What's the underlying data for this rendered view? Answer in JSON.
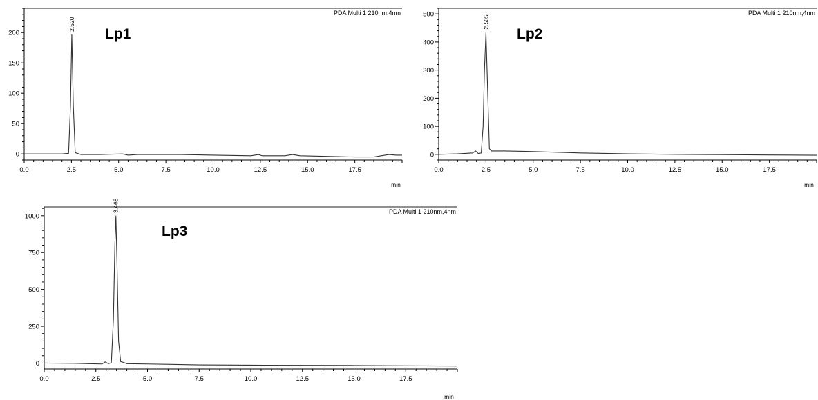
{
  "chart_data": [
    {
      "type": "line",
      "sample_label": "Lp1",
      "detector_label": "PDA Multi 1 210nm,4nm",
      "xlabel": "min",
      "ylabel": "",
      "xlim": [
        0,
        20
      ],
      "ylim": [
        -10,
        240
      ],
      "x_ticks": [
        "0.0",
        "2.5",
        "5.0",
        "7.5",
        "10.0",
        "12.5",
        "15.0",
        "17.5"
      ],
      "y_ticks": [
        "0",
        "50",
        "100",
        "150",
        "200"
      ],
      "peak_label": "2.520",
      "peak_rt": 2.52,
      "series": [
        {
          "x": [
            0,
            1.0,
            2.0,
            2.35,
            2.45,
            2.52,
            2.6,
            2.7,
            3.0,
            4.0,
            5.2,
            5.5,
            6.0,
            8.3,
            10.0,
            12.0,
            12.4,
            12.6,
            13.0,
            13.8,
            14.2,
            14.6,
            16.0,
            17.5,
            18.5,
            19.3,
            19.7,
            20.0
          ],
          "y": [
            0,
            0,
            0,
            1,
            80,
            197,
            80,
            2,
            -1,
            -1,
            0,
            -2,
            -1,
            -1,
            -2,
            -3,
            -1,
            -3,
            -3,
            -3,
            -1,
            -3,
            -4,
            -5,
            -5,
            -1,
            -2,
            -2
          ]
        }
      ]
    },
    {
      "type": "line",
      "sample_label": "Lp2",
      "detector_label": "PDA Multi 1 210nm,4nm",
      "xlabel": "min",
      "ylabel": "",
      "xlim": [
        0,
        20
      ],
      "ylim": [
        -20,
        520
      ],
      "x_ticks": [
        "0.0",
        "2.5",
        "5.0",
        "7.5",
        "10.0",
        "12.5",
        "15.0",
        "17.5"
      ],
      "y_ticks": [
        "0",
        "100",
        "200",
        "300",
        "400",
        "500"
      ],
      "peak_label": "2.505",
      "peak_rt": 2.505,
      "series": [
        {
          "x": [
            0,
            1.0,
            1.8,
            1.95,
            2.1,
            2.25,
            2.35,
            2.42,
            2.5,
            2.58,
            2.68,
            2.8,
            3.5,
            5.0,
            7.5,
            10.0,
            12.5,
            15.0,
            17.5,
            20.0
          ],
          "y": [
            0,
            2,
            5,
            12,
            3,
            5,
            100,
            300,
            435,
            250,
            20,
            12,
            12,
            10,
            5,
            2,
            0,
            -1,
            -2,
            -3
          ]
        }
      ]
    },
    {
      "type": "line",
      "sample_label": "Lp3",
      "detector_label": "PDA Multi 1 210nm,4nm",
      "xlabel": "min",
      "ylabel": "",
      "xlim": [
        0,
        20
      ],
      "ylim": [
        -40,
        1060
      ],
      "x_ticks": [
        "0.0",
        "2.5",
        "5.0",
        "7.5",
        "10.0",
        "12.5",
        "15.0",
        "17.5"
      ],
      "y_ticks": [
        "0",
        "250",
        "500",
        "750",
        "1000"
      ],
      "peak_label": "3.468",
      "peak_rt": 3.468,
      "series": [
        {
          "x": [
            0,
            1.5,
            2.8,
            2.95,
            3.1,
            3.25,
            3.35,
            3.42,
            3.47,
            3.52,
            3.6,
            3.7,
            3.85,
            4.0,
            5.0,
            7.5,
            10.0,
            12.5,
            15.0,
            17.5,
            20.0
          ],
          "y": [
            0,
            -2,
            -6,
            8,
            -4,
            2,
            300,
            800,
            1000,
            700,
            150,
            10,
            4,
            -4,
            -6,
            -12,
            -14,
            -15,
            -16,
            -18,
            -20
          ]
        }
      ]
    }
  ]
}
